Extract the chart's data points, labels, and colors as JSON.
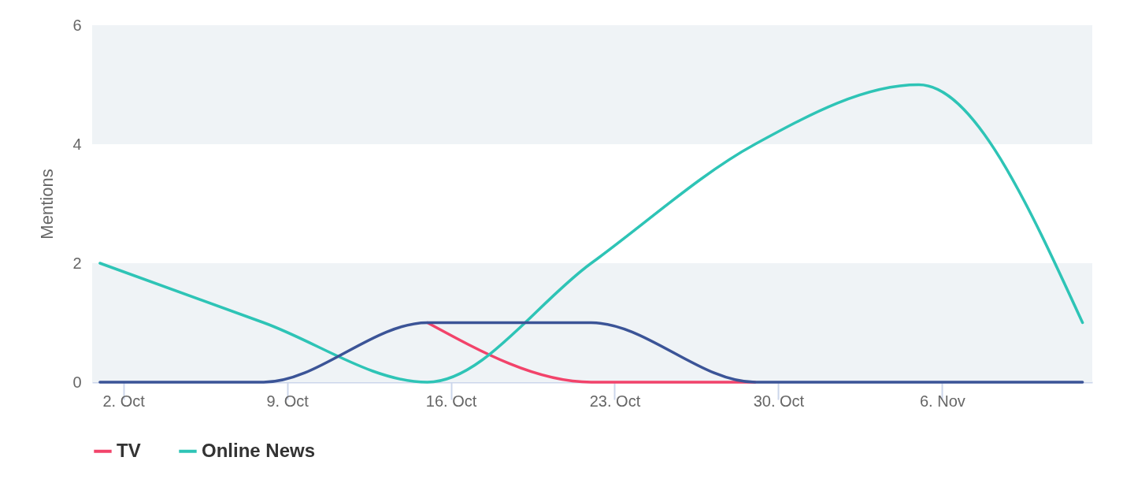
{
  "chart_data": {
    "type": "line",
    "ylabel": "Mentions",
    "x": [
      "--10-01",
      "--10-08",
      "--10-15",
      "--10-22",
      "--10-29",
      "--11-05",
      "--11-12"
    ],
    "series": [
      {
        "name": "TV",
        "color": "#f2436a",
        "values": [
          null,
          null,
          1,
          0,
          0,
          null,
          null
        ]
      },
      {
        "name": "Online News",
        "color": "#2ec4b6",
        "values": [
          2,
          1,
          0,
          2,
          4,
          5,
          1
        ]
      },
      {
        "color": "#3b5497",
        "values": [
          0,
          0,
          1,
          1,
          0,
          0,
          0
        ]
      }
    ],
    "xlim": [
      "--09-30T16:00",
      "--11-12T10:00"
    ],
    "xticks": [
      {
        "value": "--10-02",
        "label": "2. Oct"
      },
      {
        "value": "--10-09",
        "label": "9. Oct"
      },
      {
        "value": "--10-16",
        "label": "16. Oct"
      },
      {
        "value": "--10-23",
        "label": "23. Oct"
      },
      {
        "value": "--10-30",
        "label": "30. Oct"
      },
      {
        "value": "--11-06",
        "label": "6. Nov"
      }
    ],
    "ylim": [
      0,
      6
    ],
    "yticks": [
      0,
      2,
      4,
      6
    ],
    "bands": [
      {
        "axis": "y",
        "from": 0,
        "to": 2,
        "color": "#eff3f6"
      },
      {
        "axis": "y",
        "from": 4,
        "to": 6,
        "color": "#eff3f6"
      }
    ],
    "legend": "bottom",
    "marker": "none",
    "line_style": "solid"
  }
}
